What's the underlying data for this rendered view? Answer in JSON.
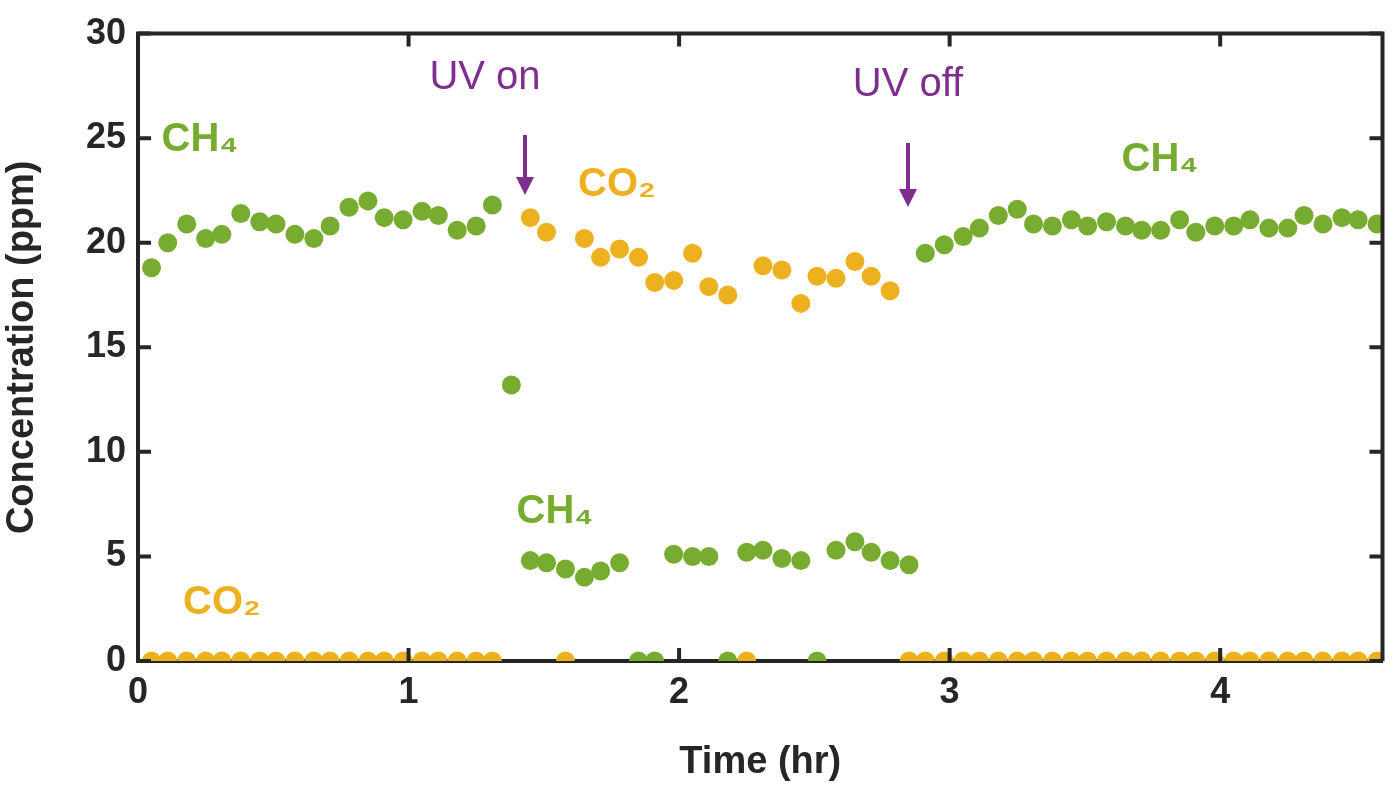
{
  "chart_data": {
    "type": "scatter",
    "xlabel": "Time (hr)",
    "ylabel": "Concentration (ppm)",
    "x": [
      0.05,
      0.11,
      0.18,
      0.25,
      0.31,
      0.38,
      0.45,
      0.51,
      0.58,
      0.65,
      0.71,
      0.78,
      0.85,
      0.91,
      0.98,
      1.05,
      1.11,
      1.18,
      1.25,
      1.31,
      1.38,
      1.45,
      1.51,
      1.58,
      1.65,
      1.71,
      1.78,
      1.85,
      1.91,
      1.98,
      2.05,
      2.11,
      2.18,
      2.25,
      2.31,
      2.38,
      2.45,
      2.51,
      2.58,
      2.65,
      2.71,
      2.78,
      2.85,
      2.91,
      2.98,
      3.05,
      3.11,
      3.18,
      3.25,
      3.31,
      3.38,
      3.45,
      3.51,
      3.58,
      3.65,
      3.71,
      3.78,
      3.85,
      3.91,
      3.98,
      4.05,
      4.11,
      4.18,
      4.25,
      4.31,
      4.38,
      4.45,
      4.51,
      4.58
    ],
    "series": [
      {
        "name": "CO₂",
        "color": "#edb120",
        "values": [
          0,
          0,
          0,
          0,
          0,
          0,
          0,
          0,
          0,
          0,
          0,
          0,
          0,
          0,
          0,
          0,
          0,
          0,
          0,
          0,
          null,
          21.2,
          20.5,
          0,
          20.2,
          19.3,
          19.7,
          19.3,
          18.1,
          18.2,
          19.5,
          17.9,
          17.5,
          0,
          18.9,
          18.7,
          17.1,
          18.4,
          18.3,
          19.1,
          18.4,
          17.7,
          0,
          0,
          0,
          0,
          0,
          0,
          0,
          0,
          0,
          0,
          0,
          0,
          0,
          0,
          0,
          0,
          0,
          0,
          0,
          0,
          0,
          0,
          0,
          0,
          0,
          0,
          0
        ]
      },
      {
        "name": "CH₄",
        "color": "#77ac30",
        "values": [
          18.8,
          20.0,
          20.9,
          20.2,
          20.4,
          21.4,
          21.0,
          20.9,
          20.4,
          20.2,
          20.8,
          21.7,
          22.0,
          21.2,
          21.1,
          21.5,
          21.3,
          20.6,
          20.8,
          21.8,
          13.2,
          4.8,
          4.7,
          4.4,
          4.0,
          4.3,
          4.7,
          0,
          0,
          5.1,
          5.0,
          5.0,
          0,
          5.2,
          5.3,
          4.9,
          4.8,
          0,
          5.3,
          5.7,
          5.2,
          4.8,
          4.6,
          19.5,
          19.9,
          20.3,
          20.7,
          21.3,
          21.6,
          20.9,
          20.8,
          21.1,
          20.8,
          21.0,
          20.8,
          20.6,
          20.6,
          21.1,
          20.5,
          20.8,
          20.8,
          21.1,
          20.7,
          20.7,
          21.3,
          20.9,
          21.2,
          21.1,
          20.9
        ]
      }
    ],
    "xlim": [
      0,
      4.6
    ],
    "xticks": [
      0,
      1,
      2,
      3,
      4
    ],
    "ylim": [
      0,
      30
    ],
    "yticks": [
      0,
      5,
      10,
      15,
      20,
      25,
      30
    ],
    "grid": false,
    "legend": false,
    "marker": "circle",
    "annotations": [
      "UV on",
      "UV off"
    ]
  }
}
